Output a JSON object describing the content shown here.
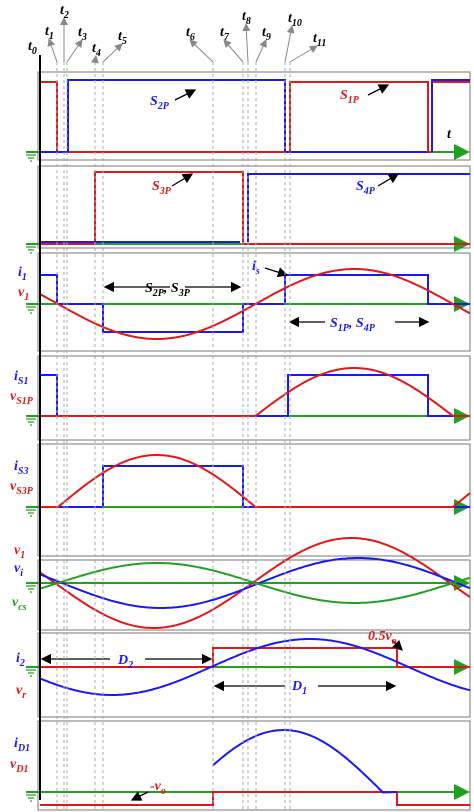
{
  "time_labels": [
    [
      "t",
      "0"
    ],
    [
      "t",
      "1"
    ],
    [
      "t",
      "2"
    ],
    [
      "t",
      "3"
    ],
    [
      "t",
      "4"
    ],
    [
      "t",
      "5"
    ],
    [
      "t",
      "6"
    ],
    [
      "t",
      "7"
    ],
    [
      "t",
      "8"
    ],
    [
      "t",
      "9"
    ],
    [
      "t",
      "10"
    ],
    [
      "t",
      "11"
    ]
  ],
  "axis_label": [
    "t"
  ],
  "labels": {
    "s2p": [
      "S",
      "2P"
    ],
    "s1p": [
      "S",
      "1P"
    ],
    "s3p": [
      "S",
      "3P"
    ],
    "s4p": [
      "S",
      "4P"
    ],
    "i1": [
      "i",
      "1"
    ],
    "v1": [
      "v",
      "1"
    ],
    "s2p_s3p": [
      "S",
      "2P",
      ", S",
      "3P"
    ],
    "is": [
      "i",
      "s"
    ],
    "s1p_s4p": [
      "S",
      "1P",
      ", S",
      "4P"
    ],
    "is1": [
      "i",
      "S1"
    ],
    "vs1p": [
      "v",
      "S1P"
    ],
    "is3": [
      "i",
      "S3"
    ],
    "vs3p": [
      "v",
      "S3P"
    ],
    "v1b": [
      "v",
      "1"
    ],
    "vi": [
      "v",
      "i"
    ],
    "vcs": [
      "v",
      "cs"
    ],
    "i2": [
      "i",
      "2"
    ],
    "vr": [
      "v",
      "r"
    ],
    "d2": [
      "D",
      "2"
    ],
    "d1": [
      "D",
      "1"
    ],
    "half_vo": [
      "0.5v",
      "o"
    ],
    "id1": [
      "i",
      "D1"
    ],
    "vd1": [
      "v",
      "D1"
    ],
    "neg_vo": [
      "-v",
      "o"
    ]
  }
}
